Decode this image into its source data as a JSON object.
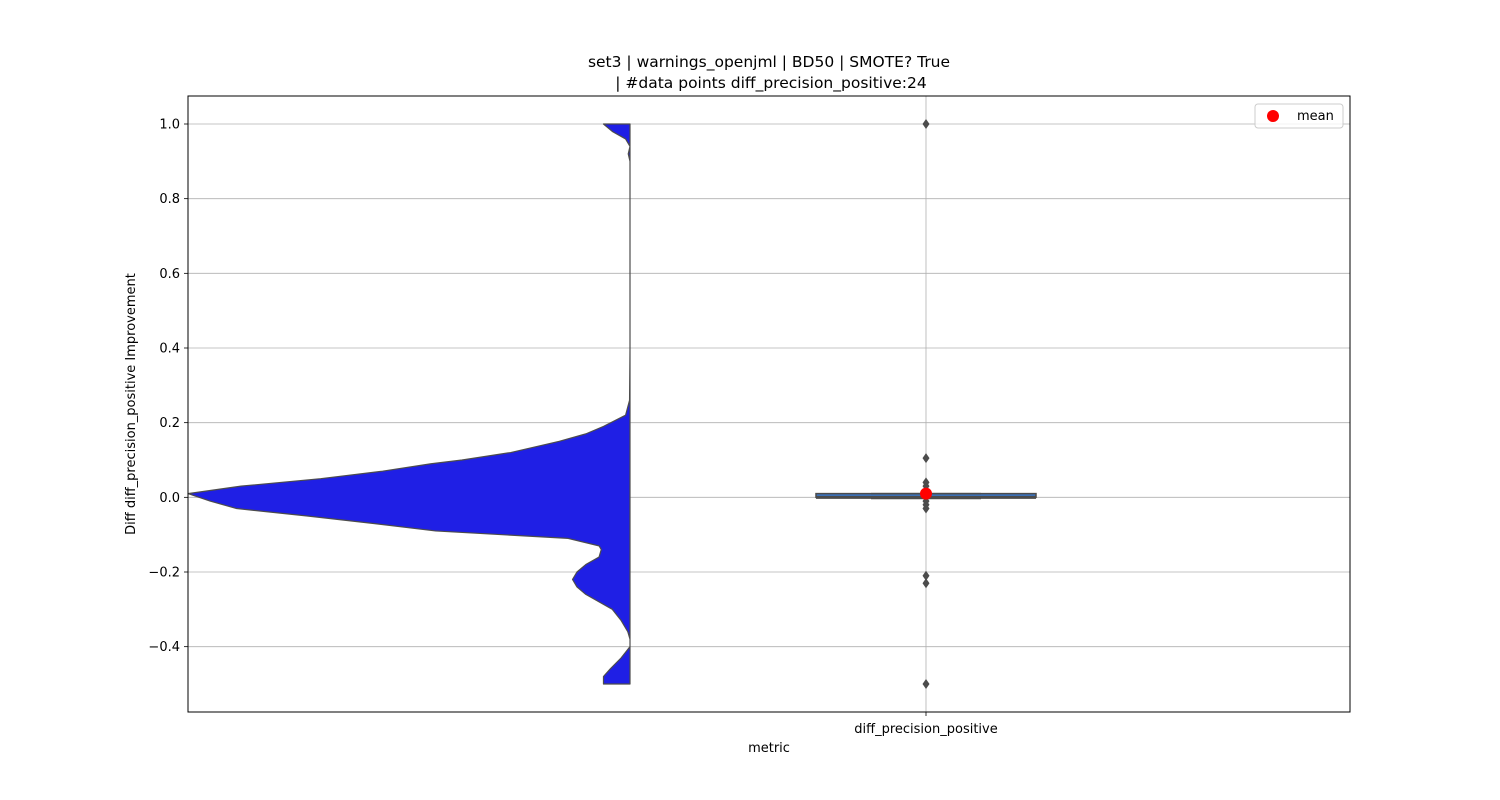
{
  "chart_data": {
    "type": "violin",
    "title_lines": [
      "set3 | warnings_openjml | BD50 | SMOTE? True",
      "| #data points diff_precision_positive:24"
    ],
    "xlabel": "metric",
    "ylabel": "Diff diff_precision_positive Improvement",
    "categories": [
      "diff_precision_positive"
    ],
    "ylim": [
      -0.575,
      1.075
    ],
    "yticks": [
      {
        "value": -0.4,
        "label": "−0.4"
      },
      {
        "value": -0.2,
        "label": "−0.2"
      },
      {
        "value": 0.0,
        "label": "0.0"
      },
      {
        "value": 0.2,
        "label": "0.2"
      },
      {
        "value": 0.4,
        "label": "0.4"
      },
      {
        "value": 0.6,
        "label": "0.6"
      },
      {
        "value": 0.8,
        "label": "0.8"
      },
      {
        "value": 1.0,
        "label": "1.0"
      }
    ],
    "grid": true,
    "legend": {
      "placement": "top-right",
      "entries": [
        {
          "label": "mean",
          "marker": "circle",
          "color": "#ff0000"
        }
      ]
    },
    "violin": {
      "color": "#1f1fe5",
      "range": [
        -0.5,
        1.0
      ],
      "density_profile": [
        [
          1.0,
          0.06
        ],
        [
          0.98,
          0.04
        ],
        [
          0.96,
          0.01
        ],
        [
          0.94,
          0.0
        ],
        [
          0.92,
          0.004
        ],
        [
          0.9,
          0.0
        ],
        [
          0.8,
          0.0
        ],
        [
          0.6,
          0.0
        ],
        [
          0.4,
          0.0
        ],
        [
          0.26,
          0.001
        ],
        [
          0.22,
          0.01
        ],
        [
          0.19,
          0.06
        ],
        [
          0.17,
          0.1
        ],
        [
          0.15,
          0.16
        ],
        [
          0.12,
          0.27
        ],
        [
          0.1,
          0.38
        ],
        [
          0.09,
          0.45
        ],
        [
          0.07,
          0.56
        ],
        [
          0.05,
          0.7
        ],
        [
          0.03,
          0.88
        ],
        [
          0.01,
          1.0
        ],
        [
          -0.01,
          0.95
        ],
        [
          -0.03,
          0.89
        ],
        [
          -0.05,
          0.73
        ],
        [
          -0.07,
          0.58
        ],
        [
          -0.09,
          0.44
        ],
        [
          -0.11,
          0.14
        ],
        [
          -0.13,
          0.07
        ],
        [
          -0.14,
          0.065
        ],
        [
          -0.16,
          0.07
        ],
        [
          -0.18,
          0.1
        ],
        [
          -0.2,
          0.12
        ],
        [
          -0.22,
          0.13
        ],
        [
          -0.24,
          0.12
        ],
        [
          -0.26,
          0.1
        ],
        [
          -0.28,
          0.07
        ],
        [
          -0.3,
          0.04
        ],
        [
          -0.33,
          0.02
        ],
        [
          -0.36,
          0.005
        ],
        [
          -0.38,
          0.0
        ],
        [
          -0.4,
          0.0
        ],
        [
          -0.43,
          0.02
        ],
        [
          -0.46,
          0.045
        ],
        [
          -0.48,
          0.06
        ],
        [
          -0.5,
          0.06
        ]
      ]
    },
    "boxplot": {
      "color": "#4c4c4c",
      "q1": 0.0,
      "median": 0.0,
      "q3": 0.01,
      "whisker_low": -0.003,
      "whisker_high": 0.01,
      "outliers": [
        1.0,
        0.105,
        0.04,
        0.03,
        0.02,
        0.01,
        -0.01,
        -0.02,
        -0.03,
        -0.21,
        -0.23,
        -0.5
      ],
      "mean": 0.01,
      "mean_color": "#ff0000"
    }
  }
}
